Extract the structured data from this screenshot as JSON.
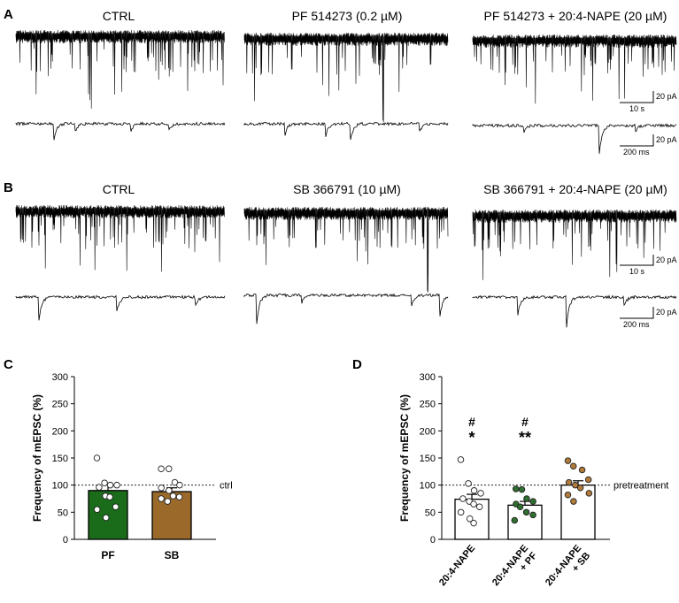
{
  "panels": {
    "A": {
      "letter": "A",
      "titles": [
        "CTRL",
        "PF 514273 (0.2 µM)",
        "PF 514273 + 20:4-NAPE (20 µM)"
      ],
      "scale_long": {
        "y": "20 pA",
        "x": "10 s"
      },
      "scale_short": {
        "y": "20 pA",
        "x": "200 ms"
      }
    },
    "B": {
      "letter": "B",
      "titles": [
        "CTRL",
        "SB 366791 (10 µM)",
        "SB 366791 + 20:4-NAPE (20 µM)"
      ],
      "scale_long": {
        "y": "20 pA",
        "x": "10 s"
      },
      "scale_short": {
        "y": "20 pA",
        "x": "200 ms"
      }
    },
    "C": {
      "letter": "C"
    },
    "D": {
      "letter": "D"
    }
  },
  "colors": {
    "pf_green": "#1a6b1a",
    "sb_brown": "#9b6a2a",
    "dot_green": "#2f6f2f",
    "dot_brown": "#b07a3a"
  },
  "chart_data": [
    {
      "type": "bar",
      "panel": "C",
      "title": "",
      "xlabel": "",
      "ylabel": "Frequency of mEPSC (%)",
      "ylim": [
        0,
        300
      ],
      "yticks": [
        0,
        50,
        100,
        150,
        200,
        250,
        300
      ],
      "categories": [
        "PF",
        "SB"
      ],
      "values": [
        90,
        88
      ],
      "sem": [
        11,
        7
      ],
      "bar_colors": [
        "#1a6b1a",
        "#9b6a2a"
      ],
      "points": [
        [
          150,
          104,
          100,
          100,
          96,
          80,
          78,
          60,
          55,
          40
        ],
        [
          130,
          130,
          105,
          100,
          95,
          90,
          80,
          78,
          75,
          70
        ]
      ],
      "reference_line": {
        "value": 100,
        "label": "ctrl"
      }
    },
    {
      "type": "bar",
      "panel": "D",
      "title": "",
      "xlabel": "",
      "ylabel": "Frequency of mEPSC (%)",
      "ylim": [
        0,
        300
      ],
      "yticks": [
        0,
        50,
        100,
        150,
        200,
        250,
        300
      ],
      "categories": [
        "20:4-NAPE",
        "20:4-NAPE\n+ PF",
        "20:4-NAPE\n+ SB"
      ],
      "values": [
        74,
        63,
        100
      ],
      "sem": [
        9,
        7,
        8
      ],
      "bar_colors": [
        "#ffffff",
        "#ffffff",
        "#ffffff"
      ],
      "points": [
        [
          147,
          103,
          90,
          85,
          75,
          70,
          65,
          60,
          50,
          38,
          30
        ],
        [
          93,
          92,
          75,
          70,
          65,
          60,
          50,
          45,
          35
        ],
        [
          145,
          135,
          128,
          110,
          105,
          100,
          95,
          85,
          82,
          70
        ]
      ],
      "point_colors": [
        "#ffffff",
        "#2f6f2f",
        "#b07a3a"
      ],
      "annotations": [
        [
          "#",
          "*"
        ],
        [
          "#",
          "**"
        ],
        []
      ],
      "reference_line": {
        "value": 100,
        "label": "pretreatment"
      }
    }
  ]
}
